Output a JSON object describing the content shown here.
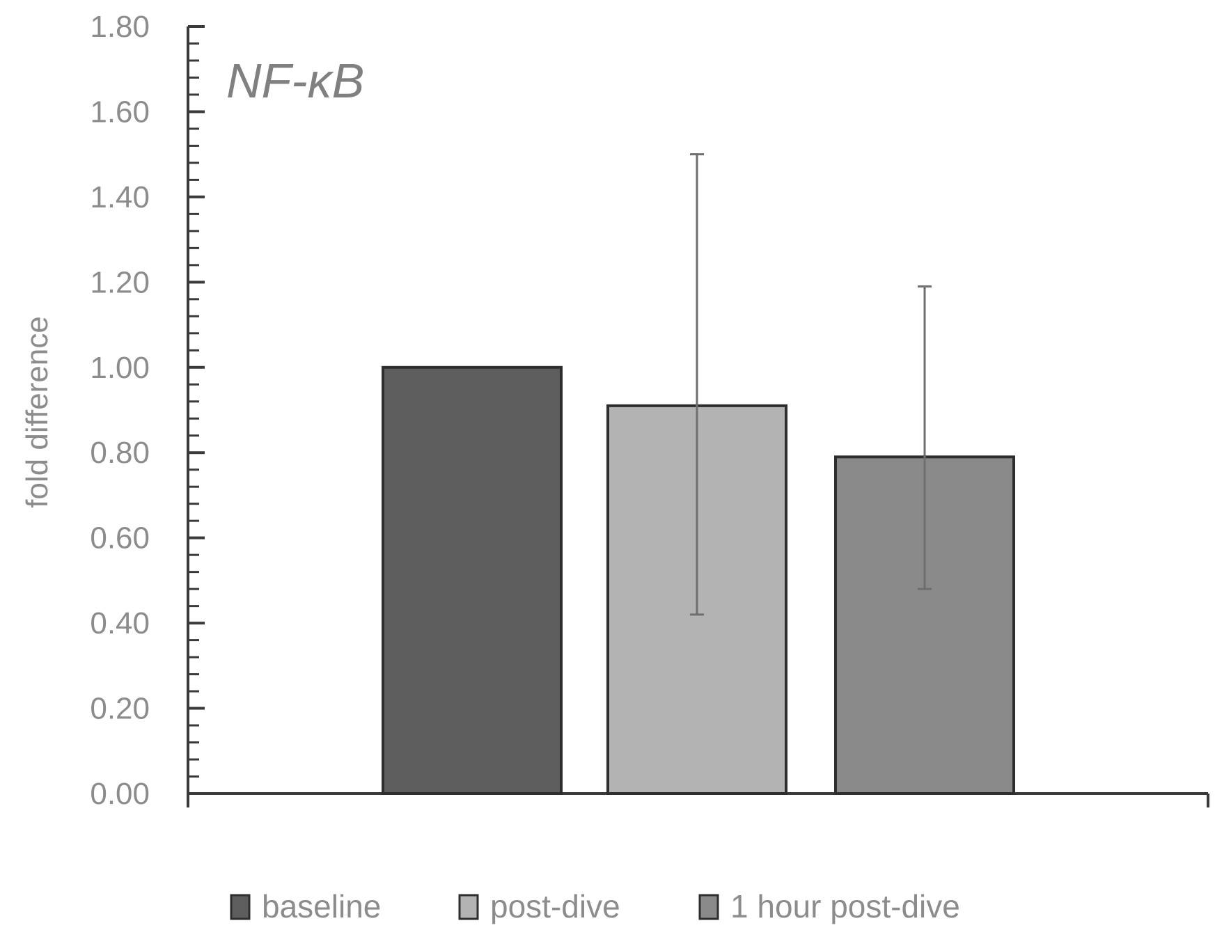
{
  "chart_data": {
    "type": "bar",
    "title": "NF-κB",
    "xlabel": "",
    "ylabel": "fold difference",
    "ylim": [
      0,
      1.8
    ],
    "yticks": [
      "0.00",
      "0.20",
      "0.40",
      "0.60",
      "0.80",
      "1.00",
      "1.20",
      "1.40",
      "1.60",
      "1.80"
    ],
    "grid": false,
    "legend_position": "bottom",
    "series": [
      {
        "name": "baseline",
        "value": 1.0,
        "error_low": null,
        "error_high": null,
        "color": "#5e5e5e"
      },
      {
        "name": "post-dive",
        "value": 0.91,
        "error_low": 0.42,
        "error_high": 1.5,
        "color": "#b3b3b3"
      },
      {
        "name": "1 hour post-dive",
        "value": 0.79,
        "error_low": 0.48,
        "error_high": 1.19,
        "color": "#8a8a8a"
      }
    ]
  }
}
